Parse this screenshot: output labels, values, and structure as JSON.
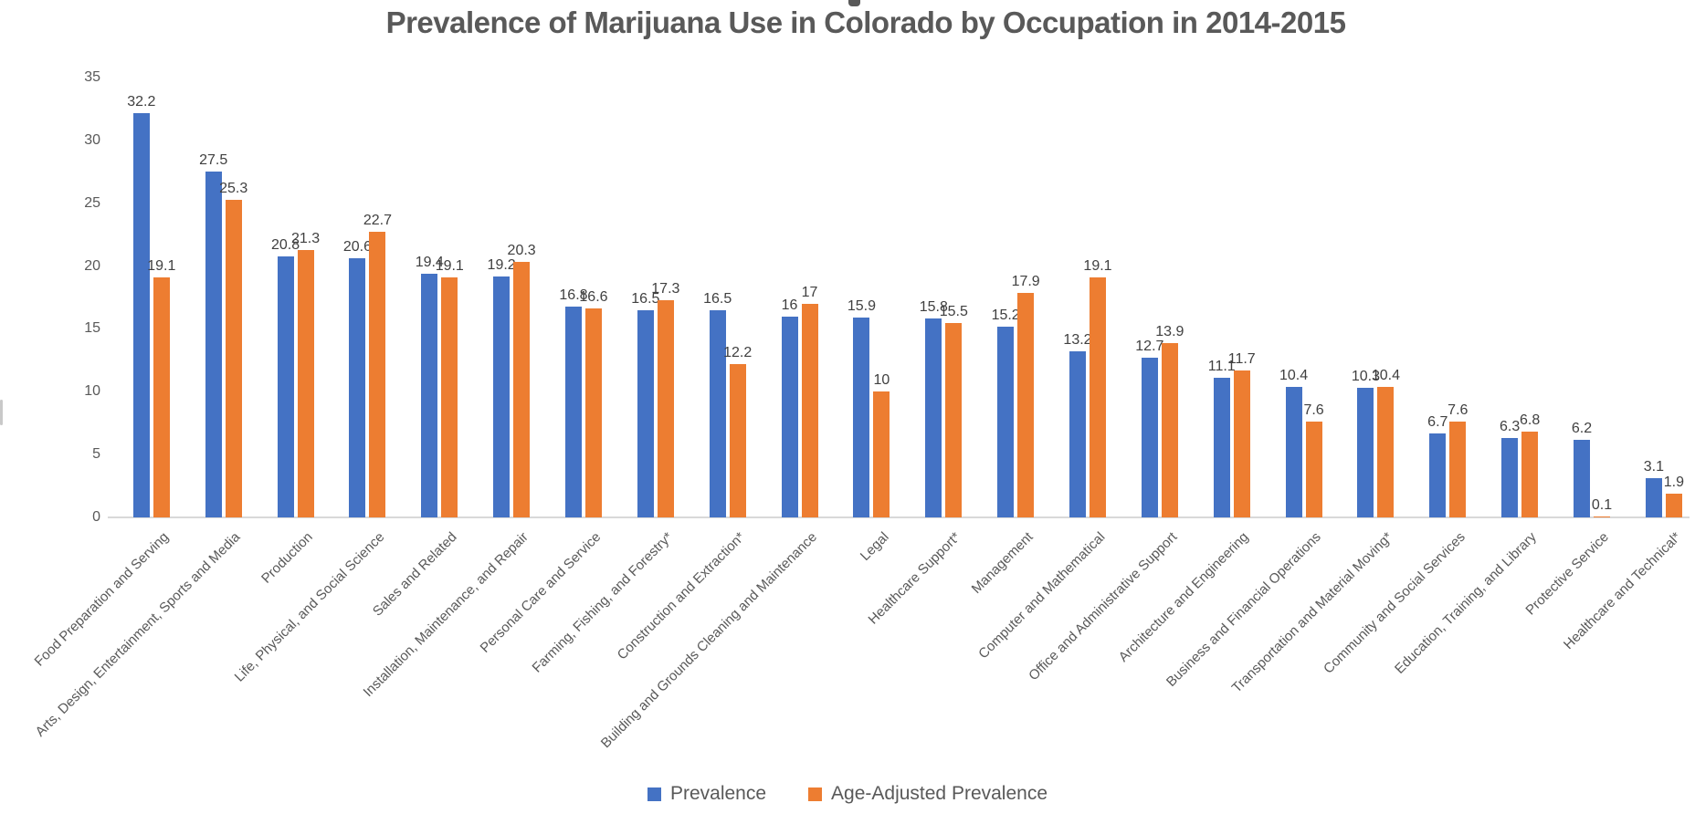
{
  "header": {
    "title": "Prevalence of Marijuana Use in Colorado by Occupation in 2014-2015"
  },
  "chart_data": {
    "type": "bar",
    "title": "Prevalence of Marijuana Use in Colorado by Occupation in 2014-2015",
    "xlabel": "",
    "ylabel": "",
    "ylim": [
      0,
      35
    ],
    "y_ticks": [
      0,
      5,
      10,
      15,
      20,
      25,
      30,
      35
    ],
    "grid": false,
    "legend_position": "bottom",
    "categories": [
      "Food Preparation and Serving",
      "Arts, Design, Entertainment, Sports and Media",
      "Production",
      "Life, Physical, and Social Science",
      "Sales and Related",
      "Installation, Maintenance, and Repair",
      "Personal Care and Service",
      "Farming, Fishing, and Forestry*",
      "Construction and Extraction*",
      "Building and Grounds Cleaning and Maintenance",
      "Legal",
      "Healthcare Support*",
      "Management",
      "Computer and Mathematical",
      "Office and Administrative Support",
      "Architecture and Engineering",
      "Business and Financial Operations",
      "Transportation and Material Moving*",
      "Community and Social Services",
      "Education, Training, and Library",
      "Protective Service",
      "Healthcare and Technical*"
    ],
    "series": [
      {
        "name": "Prevalence",
        "color": "#4472C4",
        "values": [
          32.2,
          27.5,
          20.8,
          20.6,
          19.4,
          19.2,
          16.8,
          16.5,
          16.5,
          16,
          15.9,
          15.8,
          15.2,
          13.2,
          12.7,
          11.1,
          10.4,
          10.3,
          6.7,
          6.3,
          6.2,
          3.1
        ]
      },
      {
        "name": "Age-Adjusted Prevalence",
        "color": "#ED7D31",
        "values": [
          19.1,
          25.3,
          21.3,
          22.7,
          19.1,
          20.3,
          16.6,
          17.3,
          12.2,
          17,
          10,
          15.5,
          17.9,
          19.1,
          13.9,
          11.7,
          7.6,
          10.4,
          7.6,
          6.8,
          0.1,
          1.9
        ]
      }
    ],
    "colors": {
      "title_text": "#595959",
      "axis_text": "#595959",
      "data_label_text": "#404040",
      "axis_line": "#D9D9D9",
      "background": "#FFFFFF"
    }
  }
}
